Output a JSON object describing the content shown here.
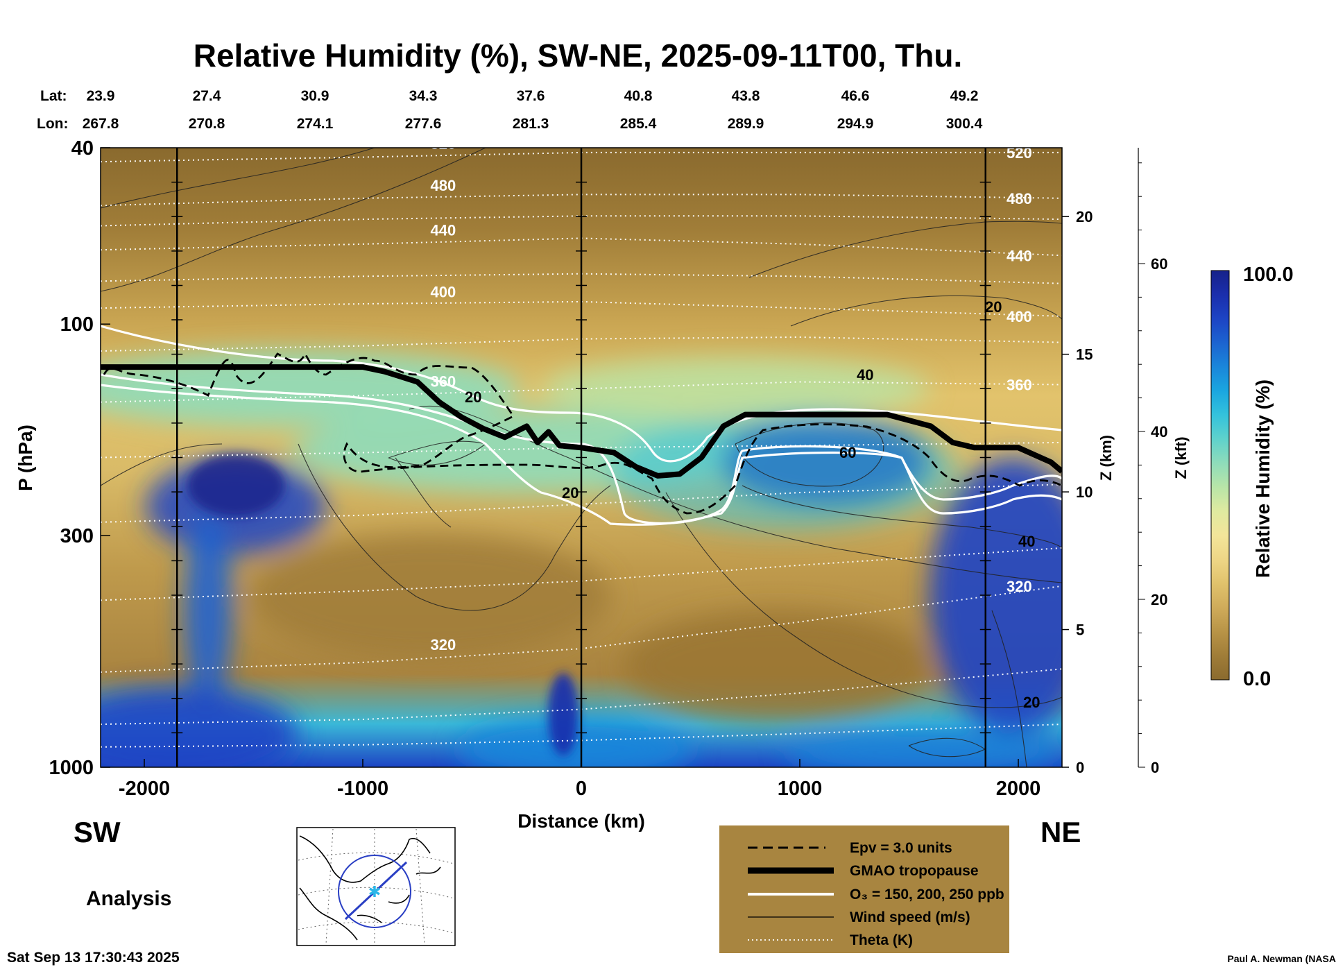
{
  "header": {
    "title": "Relative Humidity (%), SW-NE, 2025-09-11T00, Thu.",
    "lat_label": "Lat:",
    "lon_label": "Lon:",
    "lat_values": [
      "23.9",
      "27.4",
      "30.9",
      "34.3",
      "37.6",
      "40.8",
      "43.8",
      "46.6",
      "49.2"
    ],
    "lon_values": [
      "267.8",
      "270.8",
      "274.1",
      "277.6",
      "281.3",
      "285.4",
      "289.9",
      "294.9",
      "300.4"
    ]
  },
  "footer": {
    "left_direction": "SW",
    "right_direction": "NE",
    "analysis_label": "Analysis",
    "timestamp": "Sat Sep 13 17:30:43 2025",
    "credit": "Paul A. Newman (NASA"
  },
  "legend": {
    "entries": [
      {
        "label": "Epv = 3.0 units",
        "style": "dashed"
      },
      {
        "label": "GMAO tropopause",
        "style": "thick-black"
      },
      {
        "label": "O₃ = 150, 200, 250 ppb",
        "style": "white"
      },
      {
        "label": "Wind speed (m/s)",
        "style": "thin-black"
      },
      {
        "label": "Theta (K)",
        "style": "white-dotted"
      }
    ],
    "background": "#a88540"
  },
  "colorbar": {
    "label": "Relative Humidity (%)",
    "max_label": "100.0",
    "min_label": "0.0",
    "colors": [
      "#8a6a2e",
      "#a07d38",
      "#b89447",
      "#cfab5a",
      "#e0c26c",
      "#eed686",
      "#f3e59a",
      "#dfeaa0",
      "#b8e5a8",
      "#8fdcba",
      "#5fd2cc",
      "#34c2dc",
      "#1aa6e0",
      "#1a86da",
      "#1c63d0",
      "#1d44c4",
      "#1a2eac",
      "#16228a"
    ]
  },
  "chart_data": {
    "type": "heatmap",
    "title": "Relative Humidity (%), SW-NE, 2025-09-11T00, Thu.",
    "xlabel": "Distance (km)",
    "ylabel": "P (hPa)",
    "xlim": [
      -2200,
      2200
    ],
    "ylim": [
      1000,
      40
    ],
    "y_scale": "log",
    "x_ticks": [
      -2000,
      -1000,
      0,
      1000,
      2000
    ],
    "y_ticks": [
      1000,
      300,
      100,
      40
    ],
    "z_km_label": "Z (km)",
    "z_km_ticks": [
      0,
      5,
      10,
      15,
      20
    ],
    "z_kft_label": "Z (kft)",
    "z_kft_ticks": [
      0,
      20,
      40,
      60
    ],
    "colorbar_range": [
      0,
      100
    ],
    "vertical_lines_km": [
      -1850,
      0,
      1850
    ],
    "theta_contours_K": [
      {
        "label": "520",
        "p": [
          43,
          42,
          41,
          41,
          41
        ]
      },
      {
        "label": "480",
        "p": [
          54,
          52,
          51,
          51,
          52
        ]
      },
      {
        "label": "440",
        "p": [
          68,
          66,
          64,
          66,
          70
        ]
      },
      {
        "label": "400",
        "p": [
          92,
          90,
          89,
          92,
          96
        ]
      },
      {
        "label": "360",
        "p": [
          150,
          145,
          140,
          135,
          137
        ]
      },
      {
        "label": "320",
        "p": [
          610,
          580,
          540,
          470,
          390
        ]
      }
    ],
    "theta_x_km": [
      -2200,
      -1000,
      0,
      1000,
      2200
    ],
    "tropopause": {
      "x_km": [
        -2200,
        -1000,
        -900,
        -750,
        -650,
        -550,
        -450,
        -350,
        -250,
        -200,
        -150,
        -100,
        0,
        150,
        250,
        350,
        450,
        550,
        650,
        750,
        1000,
        1400,
        1600,
        1700,
        1800,
        2000,
        2150,
        2200
      ],
      "p": [
        125,
        125,
        128,
        135,
        150,
        162,
        172,
        180,
        170,
        185,
        175,
        188,
        190,
        195,
        210,
        220,
        218,
        200,
        170,
        160,
        160,
        160,
        170,
        185,
        190,
        190,
        205,
        215
      ]
    },
    "wind_speed_labels": [
      "20",
      "40",
      "60"
    ],
    "ozone_ppb": [
      150,
      200,
      250
    ],
    "epv_units": 3.0
  }
}
